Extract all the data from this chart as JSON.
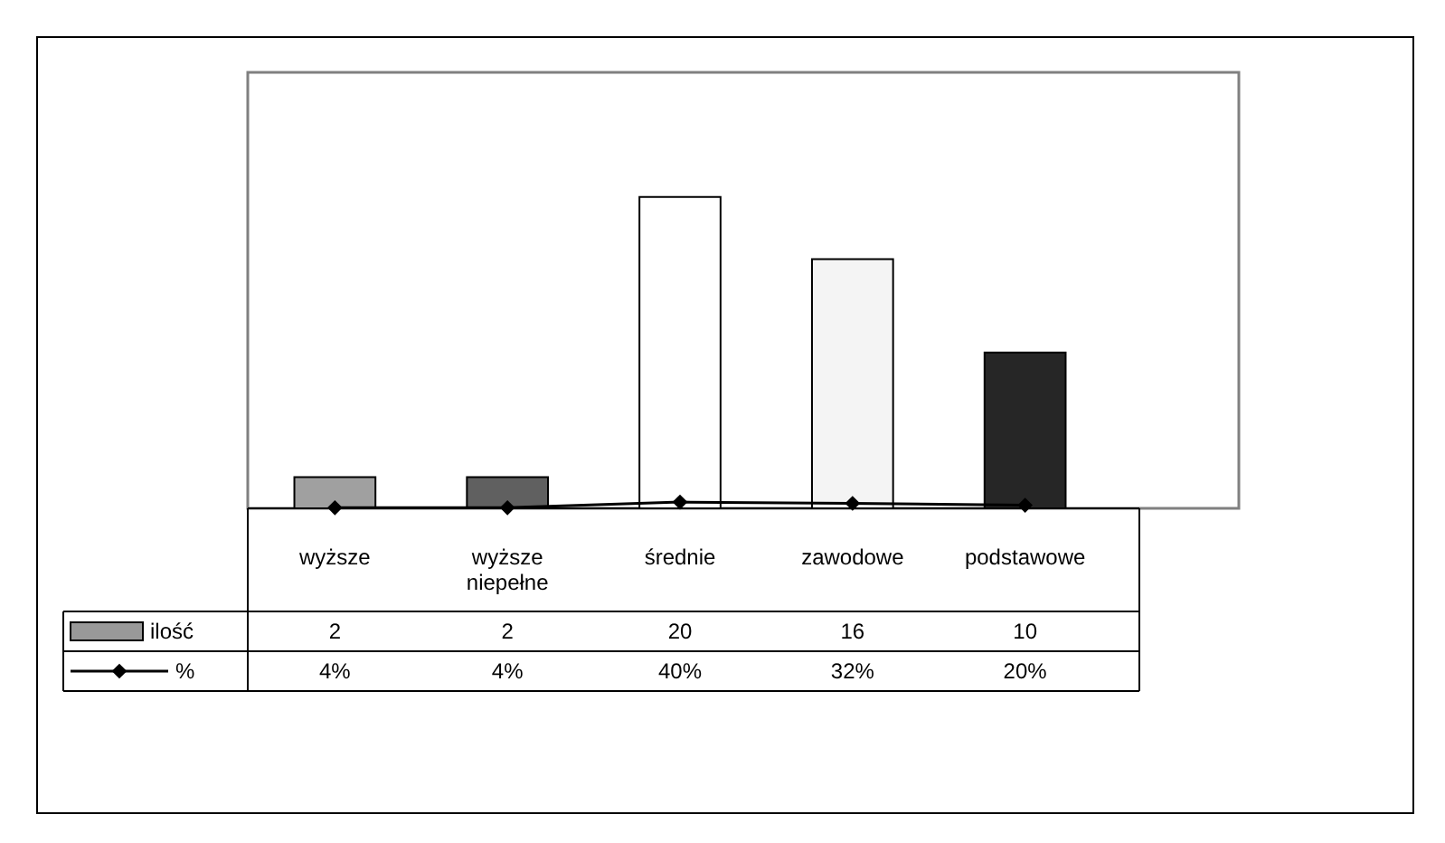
{
  "chart_data": {
    "type": "bar",
    "categories": [
      "wyższe",
      "wyższe niepełne",
      "średnie",
      "zawodowe",
      "podstawowe"
    ],
    "ylim": [
      0,
      28
    ],
    "legend": "bottom",
    "series": [
      {
        "name": "ilość",
        "color": "#999999",
        "colors": [
          "#a0a0a0",
          "#606060",
          "#ffffff",
          "#f4f4f4",
          "#262626"
        ],
        "values": [
          2,
          2,
          20,
          16,
          10
        ],
        "value_labels": [
          "2",
          "2",
          "20",
          "16",
          "10"
        ]
      },
      {
        "name": "%",
        "type": "line",
        "color": "#000000",
        "marker": "diamond",
        "values": [
          0.04,
          0.04,
          0.4,
          0.32,
          0.2
        ],
        "value_labels": [
          "4%",
          "4%",
          "40%",
          "32%",
          "20%"
        ]
      }
    ]
  }
}
